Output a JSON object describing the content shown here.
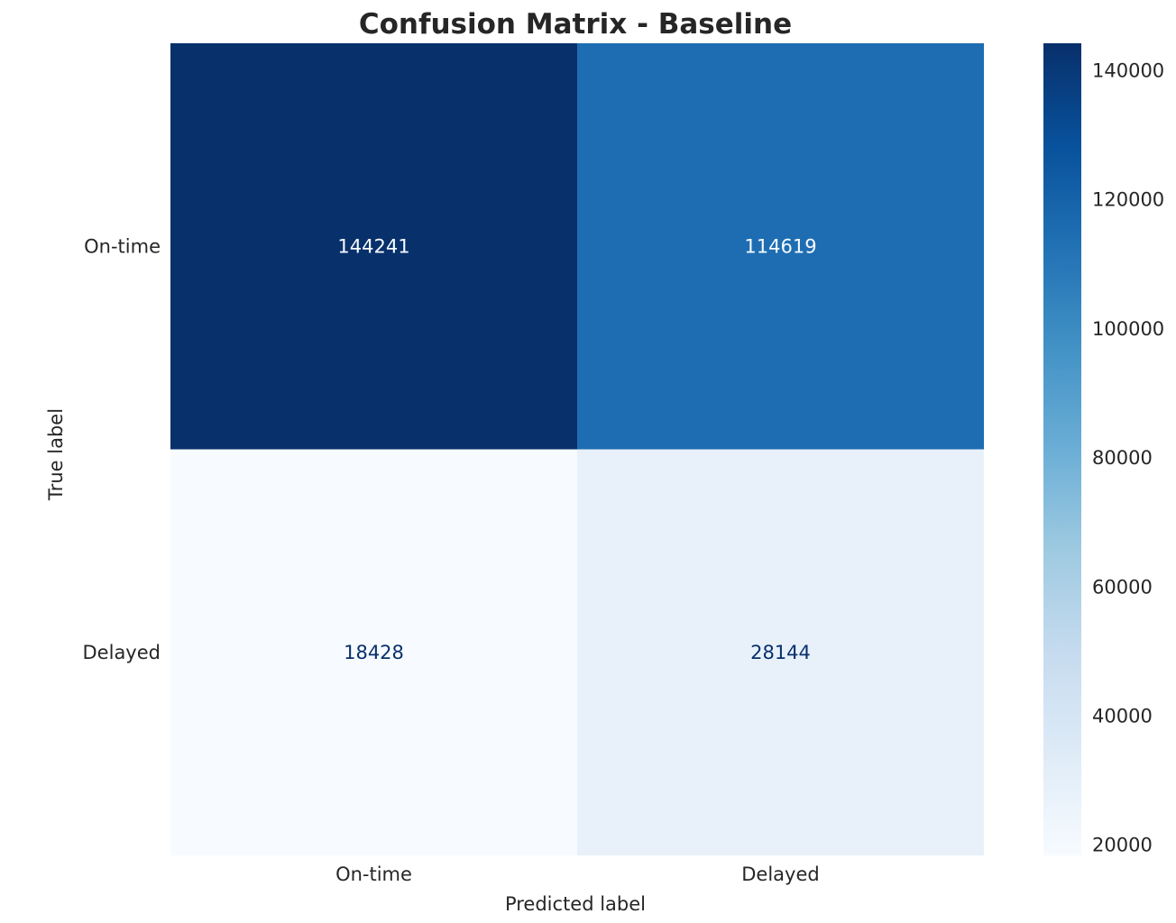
{
  "chart_data": {
    "type": "heatmap",
    "title": "Confusion Matrix - Baseline",
    "xlabel": "Predicted label",
    "ylabel": "True label",
    "x_categories": [
      "On-time",
      "Delayed"
    ],
    "y_categories": [
      "On-time",
      "Delayed"
    ],
    "values": [
      [
        144241,
        114619
      ],
      [
        18428,
        28144
      ]
    ],
    "colormap": "Blues",
    "colorbar": {
      "range": [
        18428,
        144241
      ],
      "ticks": [
        20000,
        40000,
        60000,
        80000,
        100000,
        120000,
        140000
      ]
    },
    "grid": false,
    "colors": {
      "low": "#f7fbff",
      "high": "#08306b",
      "text_on_dark": "#f7fbff",
      "text_on_light": "#08306b"
    }
  }
}
